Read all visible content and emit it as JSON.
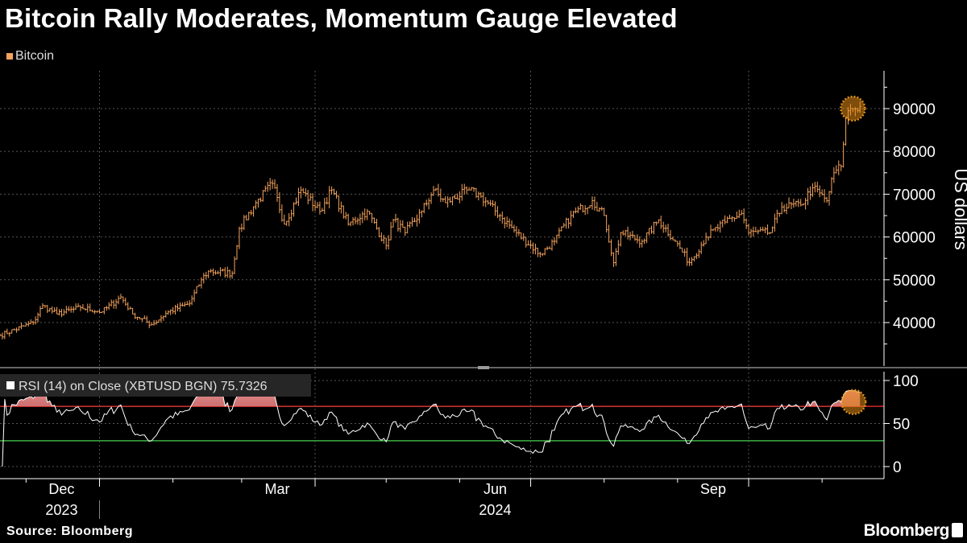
{
  "title": "Bitcoin Rally Moderates, Momentum Gauge Elevated",
  "source": "Source: Bloomberg",
  "brand": "Bloomberg",
  "colors": {
    "bitcoin": "#f5a35c",
    "overbought": "#d02a2a",
    "oversold": "#3cb043",
    "rsi": "#ffffff"
  },
  "chart_data": [
    {
      "type": "ohlc",
      "title": "Bitcoin Rally Moderates, Momentum Gauge Elevated",
      "legend": [
        "Bitcoin"
      ],
      "ylabel": "US dollars",
      "ylim": [
        30000,
        100000
      ],
      "yticks": [
        40000,
        50000,
        60000,
        70000,
        80000,
        90000
      ],
      "ytick_labels": [
        "40000",
        "50000",
        "60000",
        "70000",
        "80000",
        "90000"
      ],
      "xlim": [
        "2023-11-20",
        "2024-11-20"
      ],
      "x_month_labels": [
        {
          "label": "Dec",
          "date": "2023-12-16"
        },
        {
          "label": "Mar",
          "date": "2024-03-16"
        },
        {
          "label": "Jun",
          "date": "2024-06-16"
        },
        {
          "label": "Sep",
          "date": "2024-09-16"
        }
      ],
      "x_year_labels": [
        {
          "label": "2023",
          "date": "2023-12-16"
        },
        {
          "label": "2024",
          "date": "2024-06-16"
        }
      ],
      "grid": true,
      "highlight": {
        "date": "2024-11-14",
        "value": 90000
      },
      "close_anchors": [
        [
          "2023-11-20",
          37000
        ],
        [
          "2023-12-04",
          40000
        ],
        [
          "2023-12-08",
          44000
        ],
        [
          "2023-12-14",
          42000
        ],
        [
          "2023-12-24",
          43500
        ],
        [
          "2024-01-02",
          42500
        ],
        [
          "2024-01-10",
          46000
        ],
        [
          "2024-01-15",
          42000
        ],
        [
          "2024-01-23",
          39500
        ],
        [
          "2024-01-30",
          42500
        ],
        [
          "2024-02-08",
          44500
        ],
        [
          "2024-02-13",
          50000
        ],
        [
          "2024-02-16",
          52000
        ],
        [
          "2024-02-26",
          51500
        ],
        [
          "2024-02-29",
          62000
        ],
        [
          "2024-03-07",
          68000
        ],
        [
          "2024-03-14",
          72500
        ],
        [
          "2024-03-19",
          63000
        ],
        [
          "2024-03-26",
          71000
        ],
        [
          "2024-04-03",
          66000
        ],
        [
          "2024-04-08",
          71000
        ],
        [
          "2024-04-15",
          63000
        ],
        [
          "2024-04-23",
          66000
        ],
        [
          "2024-05-01",
          58000
        ],
        [
          "2024-05-04",
          64000
        ],
        [
          "2024-05-09",
          61000
        ],
        [
          "2024-05-16",
          66000
        ],
        [
          "2024-05-21",
          71000
        ],
        [
          "2024-05-26",
          68000
        ],
        [
          "2024-06-05",
          71000
        ],
        [
          "2024-06-10",
          69500
        ],
        [
          "2024-06-18",
          65000
        ],
        [
          "2024-06-25",
          61000
        ],
        [
          "2024-07-05",
          56000
        ],
        [
          "2024-07-11",
          59000
        ],
        [
          "2024-07-18",
          65000
        ],
        [
          "2024-07-27",
          68500
        ],
        [
          "2024-08-01",
          65000
        ],
        [
          "2024-08-05",
          54000
        ],
        [
          "2024-08-08",
          61000
        ],
        [
          "2024-08-17",
          59000
        ],
        [
          "2024-08-24",
          64000
        ],
        [
          "2024-08-31",
          59000
        ],
        [
          "2024-09-06",
          54000
        ],
        [
          "2024-09-13",
          60000
        ],
        [
          "2024-09-21",
          63500
        ],
        [
          "2024-09-28",
          65500
        ],
        [
          "2024-10-01",
          61000
        ],
        [
          "2024-10-10",
          61000
        ],
        [
          "2024-10-15",
          67000
        ],
        [
          "2024-10-23",
          67500
        ],
        [
          "2024-10-28",
          71500
        ],
        [
          "2024-11-03",
          68500
        ],
        [
          "2024-11-06",
          75000
        ],
        [
          "2024-11-09",
          76500
        ],
        [
          "2024-11-11",
          88000
        ],
        [
          "2024-11-13",
          90000
        ],
        [
          "2024-11-17",
          90500
        ]
      ]
    },
    {
      "type": "line",
      "name": "RSI (14)  on Close (XBTUSD BGN)",
      "last_value": "75.7326",
      "ylim": [
        -10,
        110
      ],
      "yticks": [
        0,
        50,
        100
      ],
      "ytick_labels": [
        "0",
        "50",
        "100"
      ],
      "overbought_level": 70,
      "oversold_level": 30,
      "period": 14
    }
  ]
}
